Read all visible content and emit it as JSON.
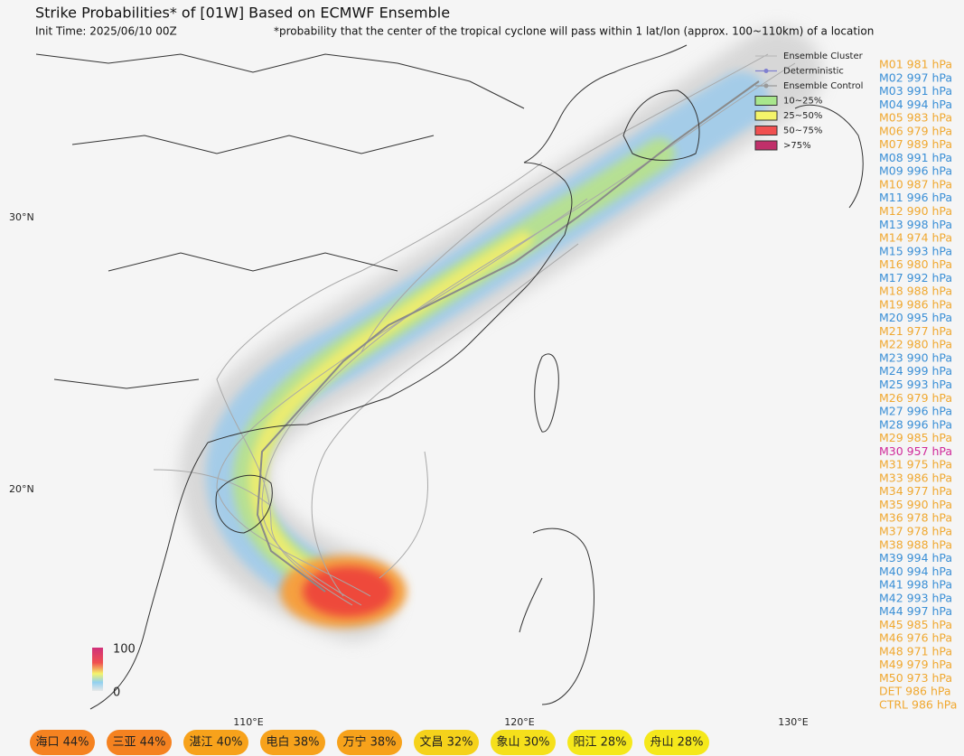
{
  "header": {
    "title": "Strike Probabilities* of [01W] Based on ECMWF Ensemble",
    "init_time": "Init Time: 2025/06/10 00Z",
    "note": "*probability that the center of the tropical cyclone will pass within 1 lat/lon (approx. 100~110km) of a location"
  },
  "legend": {
    "items": [
      {
        "label": "Ensemble Cluster",
        "kind": "line",
        "color": "#bbbbbb"
      },
      {
        "label": "Deterministic",
        "kind": "dotline",
        "color": "#8080d0"
      },
      {
        "label": "Ensemble Control",
        "kind": "dotline",
        "color": "#999999"
      },
      {
        "label": "10~25%",
        "kind": "box",
        "color": "#a8e68c"
      },
      {
        "label": "25~50%",
        "kind": "box",
        "color": "#f4f46a"
      },
      {
        "label": "50~75%",
        "kind": "box",
        "color": "#f05050"
      },
      {
        "label": ">75%",
        "kind": "box",
        "color": "#c0306a"
      }
    ]
  },
  "axes": {
    "lat_labels": [
      "30°N",
      "20°N"
    ],
    "lon_labels": [
      "110°E",
      "120°E",
      "130°E"
    ]
  },
  "colorbar": {
    "max": 100,
    "min": 0
  },
  "members": [
    {
      "label": "M01 981 hPa",
      "color": "#f0a830"
    },
    {
      "label": "M02 997 hPa",
      "color": "#3a8fd6"
    },
    {
      "label": "M03 991 hPa",
      "color": "#3a8fd6"
    },
    {
      "label": "M04 994 hPa",
      "color": "#3a8fd6"
    },
    {
      "label": "M05 983 hPa",
      "color": "#f0a830"
    },
    {
      "label": "M06 979 hPa",
      "color": "#f0a830"
    },
    {
      "label": "M07 989 hPa",
      "color": "#f0a830"
    },
    {
      "label": "M08 991 hPa",
      "color": "#3a8fd6"
    },
    {
      "label": "M09 996 hPa",
      "color": "#3a8fd6"
    },
    {
      "label": "M10 987 hPa",
      "color": "#f0a830"
    },
    {
      "label": "M11 996 hPa",
      "color": "#3a8fd6"
    },
    {
      "label": "M12 990 hPa",
      "color": "#f0a830"
    },
    {
      "label": "M13 998 hPa",
      "color": "#3a8fd6"
    },
    {
      "label": "M14 974 hPa",
      "color": "#f0a830"
    },
    {
      "label": "M15 993 hPa",
      "color": "#3a8fd6"
    },
    {
      "label": "M16 980 hPa",
      "color": "#f0a830"
    },
    {
      "label": "M17 992 hPa",
      "color": "#3a8fd6"
    },
    {
      "label": "M18 988 hPa",
      "color": "#f0a830"
    },
    {
      "label": "M19 986 hPa",
      "color": "#f0a830"
    },
    {
      "label": "M20 995 hPa",
      "color": "#3a8fd6"
    },
    {
      "label": "M21 977 hPa",
      "color": "#f0a830"
    },
    {
      "label": "M22 980 hPa",
      "color": "#f0a830"
    },
    {
      "label": "M23 990 hPa",
      "color": "#3a8fd6"
    },
    {
      "label": "M24 999 hPa",
      "color": "#3a8fd6"
    },
    {
      "label": "M25 993 hPa",
      "color": "#3a8fd6"
    },
    {
      "label": "M26 979 hPa",
      "color": "#f0a830"
    },
    {
      "label": "M27 996 hPa",
      "color": "#3a8fd6"
    },
    {
      "label": "M28 996 hPa",
      "color": "#3a8fd6"
    },
    {
      "label": "M29 985 hPa",
      "color": "#f0a830"
    },
    {
      "label": "M30 957 hPa",
      "color": "#d02a9a"
    },
    {
      "label": "M31 975 hPa",
      "color": "#f0a830"
    },
    {
      "label": "M33 986 hPa",
      "color": "#f0a830"
    },
    {
      "label": "M34 977 hPa",
      "color": "#f0a830"
    },
    {
      "label": "M35 990 hPa",
      "color": "#f0a830"
    },
    {
      "label": "M36 978 hPa",
      "color": "#f0a830"
    },
    {
      "label": "M37 978 hPa",
      "color": "#f0a830"
    },
    {
      "label": "M38 988 hPa",
      "color": "#f0a830"
    },
    {
      "label": "M39 994 hPa",
      "color": "#3a8fd6"
    },
    {
      "label": "M40 994 hPa",
      "color": "#3a8fd6"
    },
    {
      "label": "M41 998 hPa",
      "color": "#3a8fd6"
    },
    {
      "label": "M42 993 hPa",
      "color": "#3a8fd6"
    },
    {
      "label": "M44 997 hPa",
      "color": "#3a8fd6"
    },
    {
      "label": "M45 985 hPa",
      "color": "#f0a830"
    },
    {
      "label": "M46 976 hPa",
      "color": "#f0a830"
    },
    {
      "label": "M48 971 hPa",
      "color": "#f0a830"
    },
    {
      "label": "M49 979 hPa",
      "color": "#f0a830"
    },
    {
      "label": "M50 973 hPa",
      "color": "#f0a830"
    },
    {
      "label": "DET 986 hPa",
      "color": "#f0a830"
    },
    {
      "label": "CTRL 986 hPa",
      "color": "#f0a830"
    }
  ],
  "locations": [
    {
      "label": "海口 44%",
      "color": "#f58220"
    },
    {
      "label": "三亚 44%",
      "color": "#f58220"
    },
    {
      "label": "湛江 40%",
      "color": "#f7a21b"
    },
    {
      "label": "电白 38%",
      "color": "#f7a21b"
    },
    {
      "label": "万宁 38%",
      "color": "#f7a21b"
    },
    {
      "label": "文昌 32%",
      "color": "#f5d21b"
    },
    {
      "label": "象山 30%",
      "color": "#f5e01b"
    },
    {
      "label": "阳江 28%",
      "color": "#f5e81b"
    },
    {
      "label": "舟山 28%",
      "color": "#f5e81b"
    }
  ]
}
